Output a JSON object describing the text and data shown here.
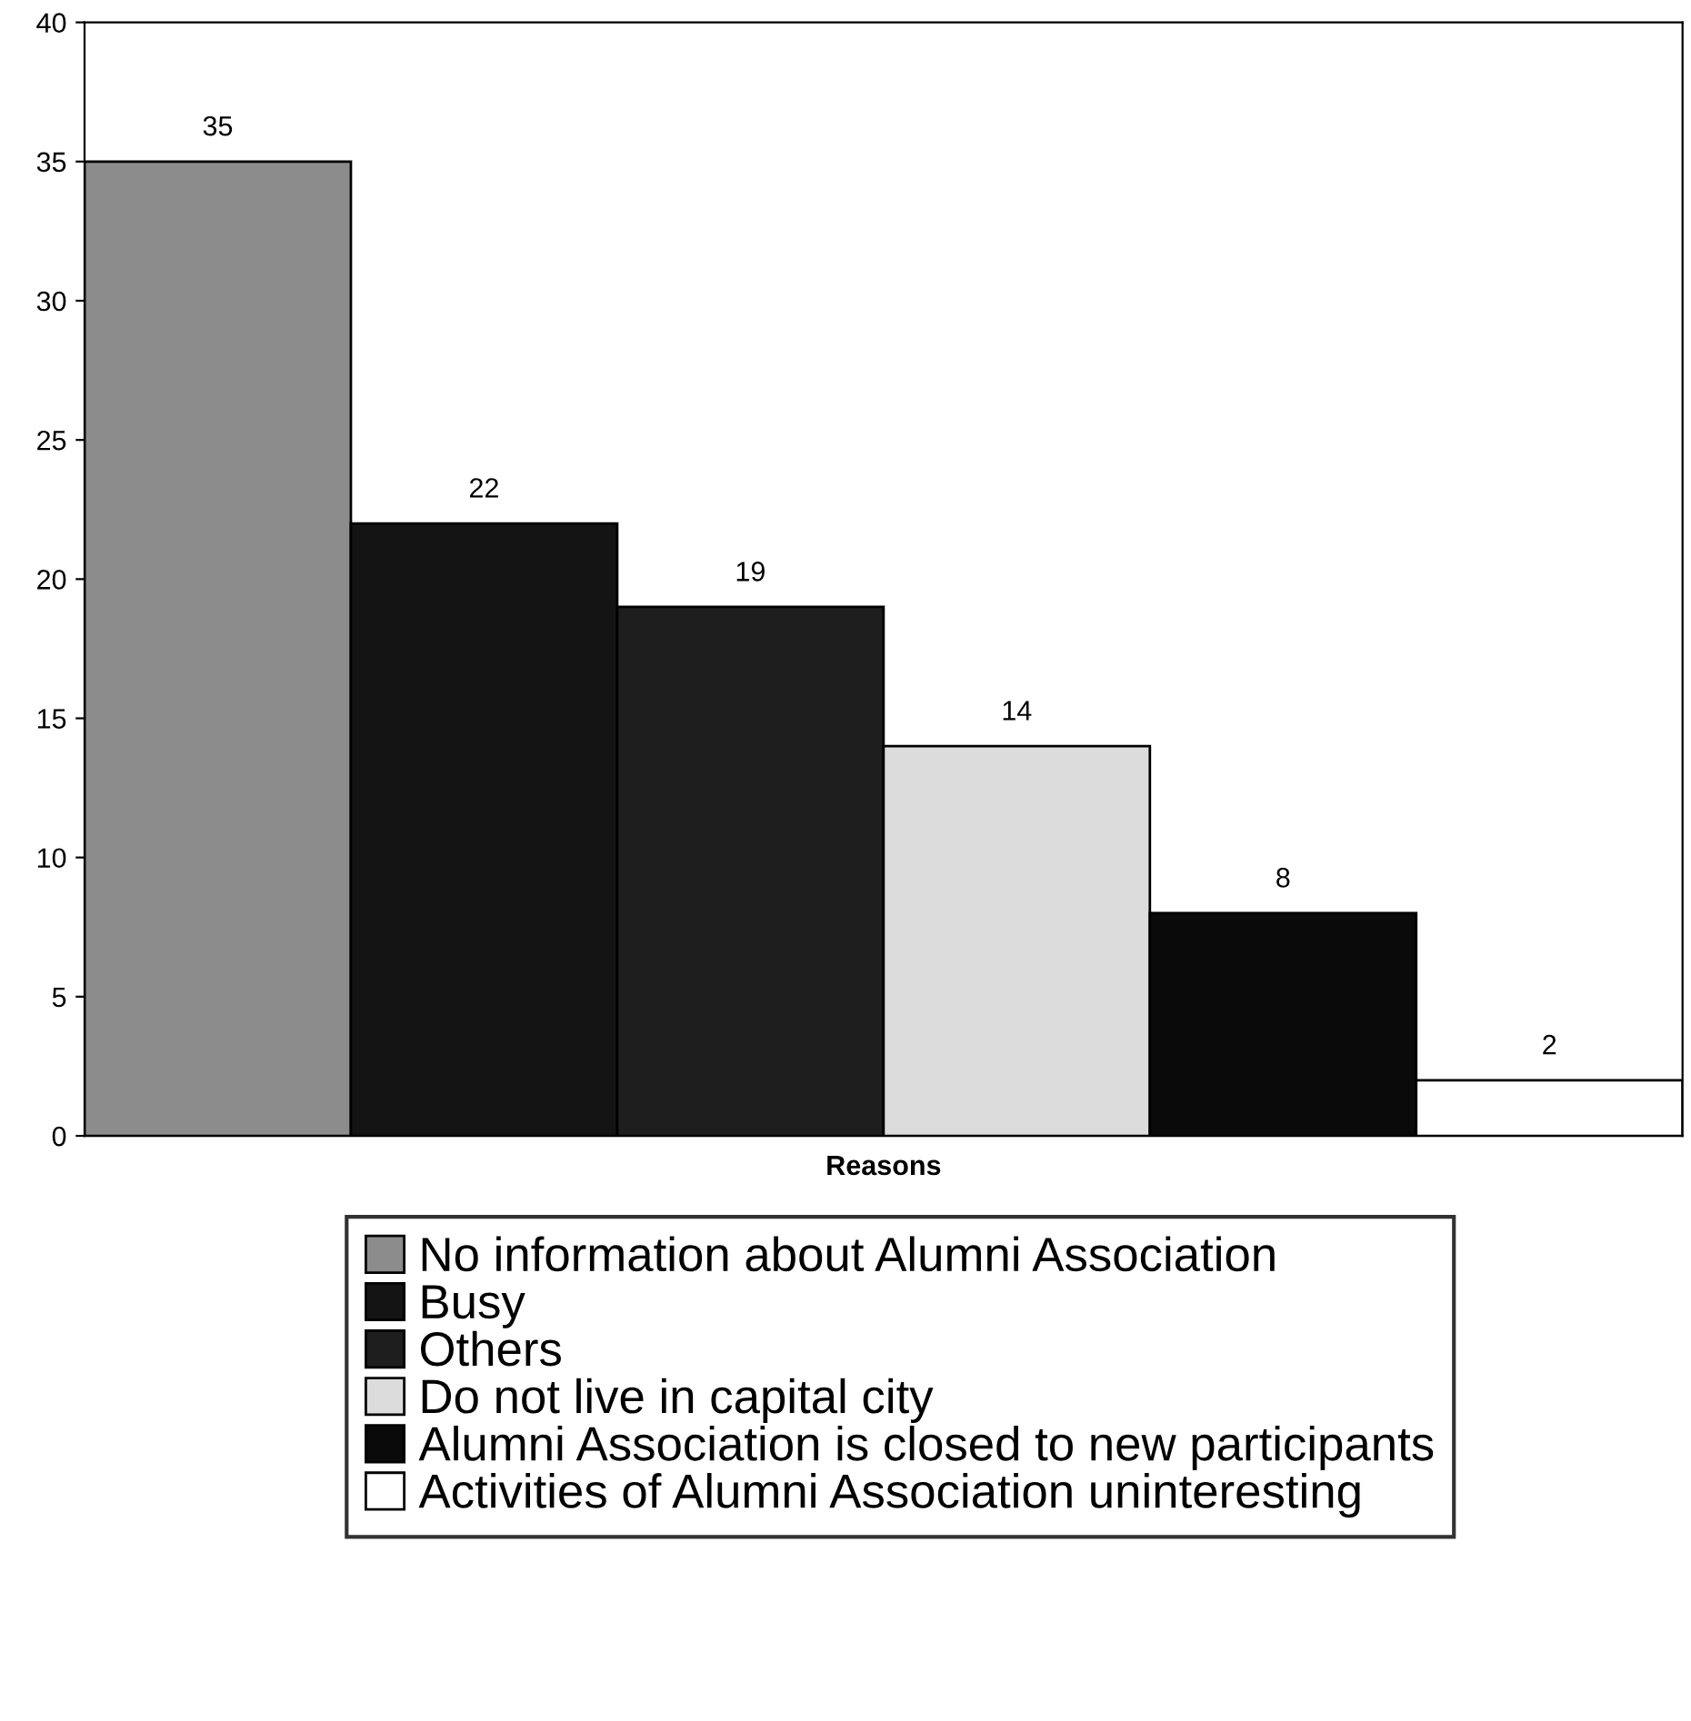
{
  "chart_data": {
    "type": "bar",
    "xlabel": "Reasons",
    "categories": [
      null,
      null,
      null,
      null,
      null,
      null
    ],
    "series": [
      {
        "name": "No information about Alumni Association",
        "color": "#8c8c8c",
        "values": [
          35,
          null,
          null,
          null,
          null,
          null
        ]
      },
      {
        "name": "Busy",
        "color": "#141414",
        "values": [
          null,
          22,
          null,
          null,
          null,
          null
        ]
      },
      {
        "name": "Others",
        "color": "#1e1e1e",
        "values": [
          null,
          null,
          19,
          null,
          null,
          null
        ]
      },
      {
        "name": "Do not live in capital city",
        "color": "#dcdcdc",
        "values": [
          null,
          null,
          null,
          14,
          null,
          null
        ]
      },
      {
        "name": "Alumni Association is closed to new participants",
        "color": "#0a0a0a",
        "values": [
          null,
          null,
          null,
          null,
          8,
          null
        ]
      },
      {
        "name": "Activities of Alumni Association uninteresting",
        "color": "#ffffff",
        "values": [
          null,
          null,
          null,
          null,
          null,
          2
        ]
      }
    ],
    "ylim": [
      0,
      40
    ],
    "yticks": [
      0,
      5,
      10,
      15,
      20,
      25,
      30,
      35,
      40
    ],
    "data_labels": true,
    "legend": "bottom",
    "grid": false
  }
}
